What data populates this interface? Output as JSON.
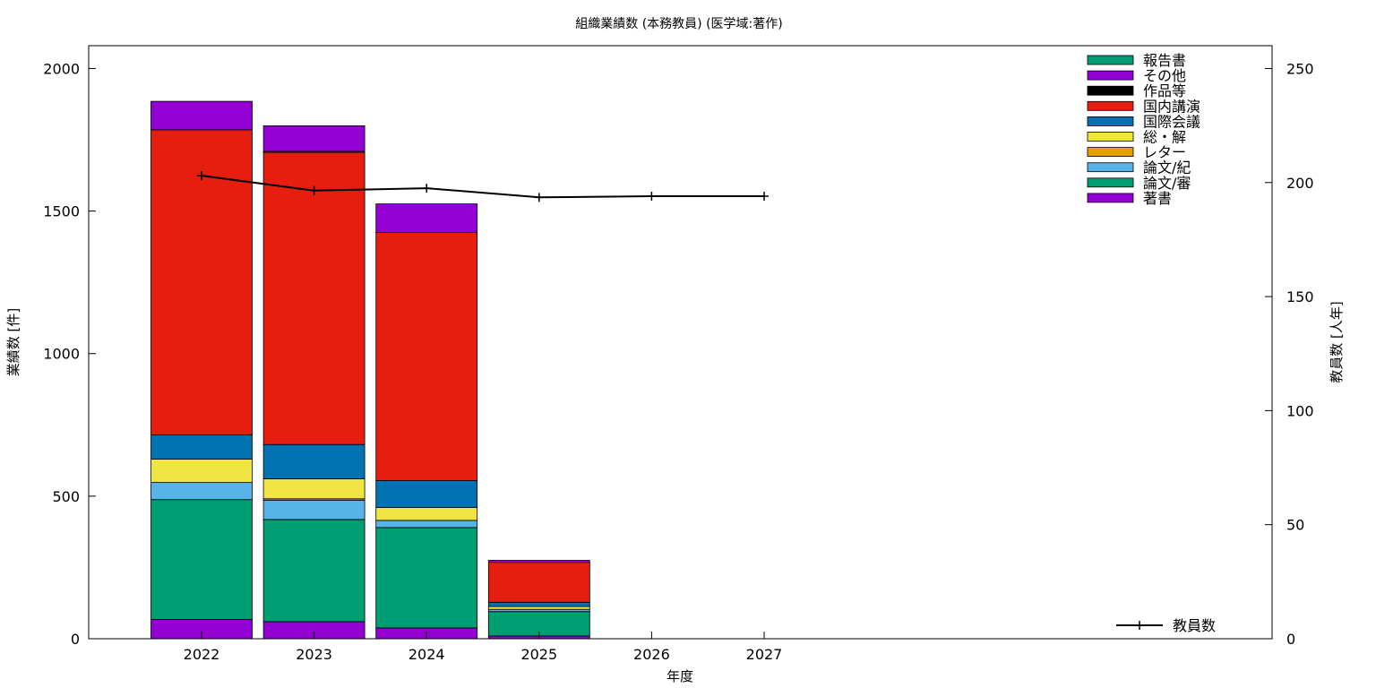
{
  "chart_data": {
    "type": "bar",
    "title": "組織業績数 (本務教員) (医学域:著作)",
    "xlabel": "年度",
    "ylabel": "業績数 [件]",
    "y2label": "教員数 [人年]",
    "categories": [
      "2022",
      "2023",
      "2024",
      "2025",
      "2026",
      "2027"
    ],
    "ylim": [
      0,
      2080
    ],
    "y2lim": [
      0,
      260
    ],
    "yticks": [
      0,
      500,
      1000,
      1500,
      2000
    ],
    "y2ticks": [
      0,
      50,
      100,
      150,
      200,
      250
    ],
    "stacked": true,
    "grid": false,
    "legend_position": "top-right",
    "series": [
      {
        "name": "著書",
        "color": "#9400d3",
        "values": [
          68,
          60,
          38,
          10,
          0,
          0
        ]
      },
      {
        "name": "論文/審",
        "color": "#009e73",
        "values": [
          420,
          358,
          352,
          85,
          0,
          0
        ]
      },
      {
        "name": "論文/紀",
        "color": "#56b4e9",
        "values": [
          60,
          68,
          25,
          8,
          0,
          0
        ]
      },
      {
        "name": "レター",
        "color": "#e69f00",
        "values": [
          0,
          5,
          0,
          0,
          0,
          0
        ]
      },
      {
        "name": "総・解",
        "color": "#f0e442",
        "values": [
          82,
          70,
          45,
          10,
          0,
          0
        ]
      },
      {
        "name": "国際会議",
        "color": "#0072b2",
        "values": [
          85,
          120,
          95,
          15,
          0,
          0
        ]
      },
      {
        "name": "国内講演",
        "color": "#e51e10",
        "values": [
          1070,
          1025,
          870,
          140,
          0,
          0
        ]
      },
      {
        "name": "作品等",
        "color": "#000000",
        "values": [
          0,
          3,
          0,
          0,
          0,
          0
        ]
      },
      {
        "name": "その他",
        "color": "#9400d3",
        "values": [
          100,
          90,
          100,
          7,
          0,
          0
        ]
      },
      {
        "name": "報告書",
        "color": "#009e73",
        "values": [
          0,
          0,
          0,
          0,
          0,
          0
        ]
      }
    ],
    "line_series": {
      "name": "教員数",
      "color": "#000000",
      "axis": "right",
      "values": [
        203,
        196.5,
        197.5,
        193.5,
        194,
        194
      ]
    }
  }
}
